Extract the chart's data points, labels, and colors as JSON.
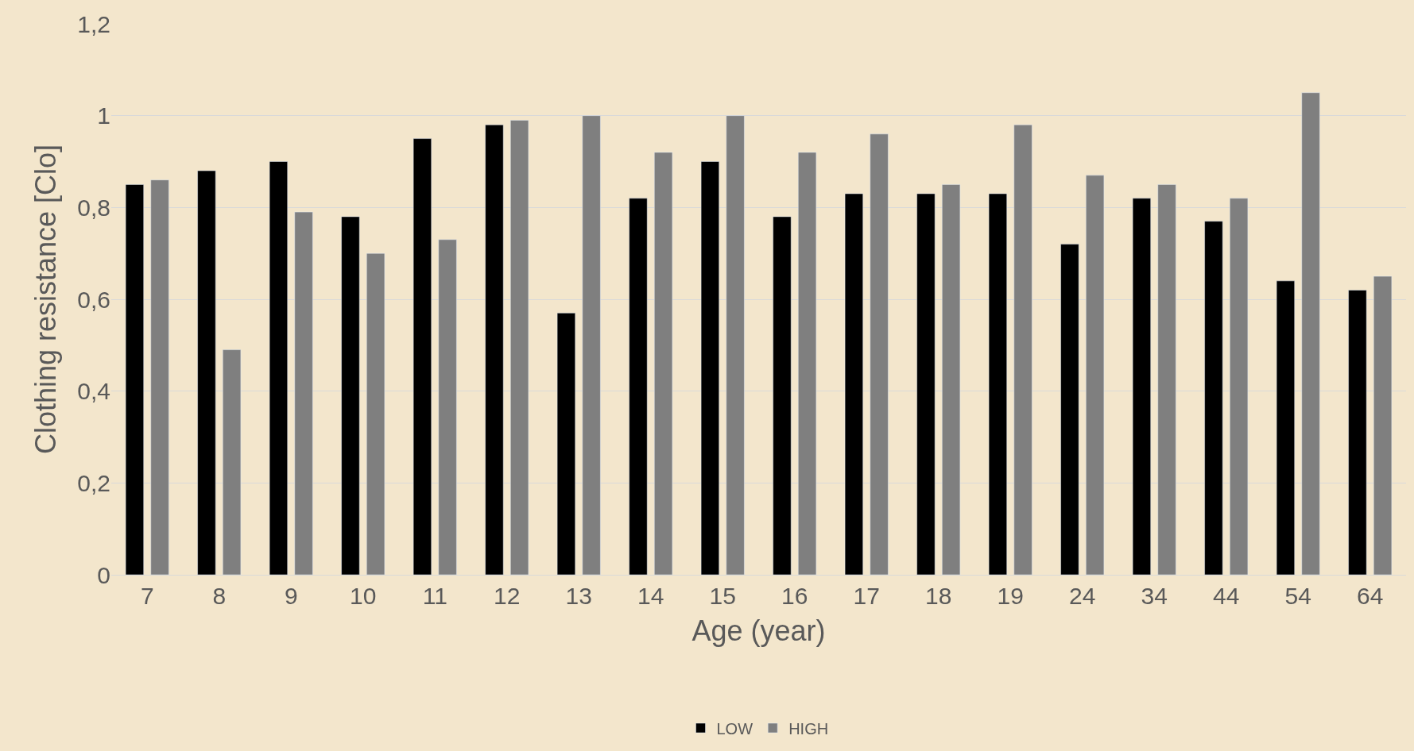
{
  "chart_data": {
    "type": "bar",
    "xlabel": "Age (year)",
    "ylabel": "Clothing resistance [Clo]",
    "categories": [
      "7",
      "8",
      "9",
      "10",
      "11",
      "12",
      "13",
      "14",
      "15",
      "16",
      "17",
      "18",
      "19",
      "24",
      "34",
      "44",
      "54",
      "64"
    ],
    "series": [
      {
        "name": "LOW",
        "color": "#000000",
        "values": [
          0.85,
          0.88,
          0.9,
          0.78,
          0.95,
          0.98,
          0.57,
          0.82,
          0.9,
          0.78,
          0.83,
          0.83,
          0.83,
          0.72,
          0.82,
          0.77,
          0.64,
          0.62
        ]
      },
      {
        "name": "HIGH",
        "color": "#7f7f7f",
        "values": [
          0.86,
          0.49,
          0.79,
          0.7,
          0.73,
          0.99,
          1.0,
          0.92,
          1.0,
          0.92,
          0.96,
          0.85,
          0.98,
          0.87,
          0.85,
          0.82,
          1.05,
          0.65
        ]
      }
    ],
    "ylim": [
      0,
      1.2
    ],
    "yticks": [
      0,
      {
        "value": 0.2,
        "label": "0,2"
      },
      {
        "value": 0.4,
        "label": "0,4"
      },
      {
        "value": 0.6,
        "label": "0,6"
      },
      {
        "value": 0.8,
        "label": "0,8"
      },
      1,
      {
        "value": 1.2,
        "label": "1,2"
      }
    ],
    "grid": "y",
    "legend": "bottom"
  }
}
